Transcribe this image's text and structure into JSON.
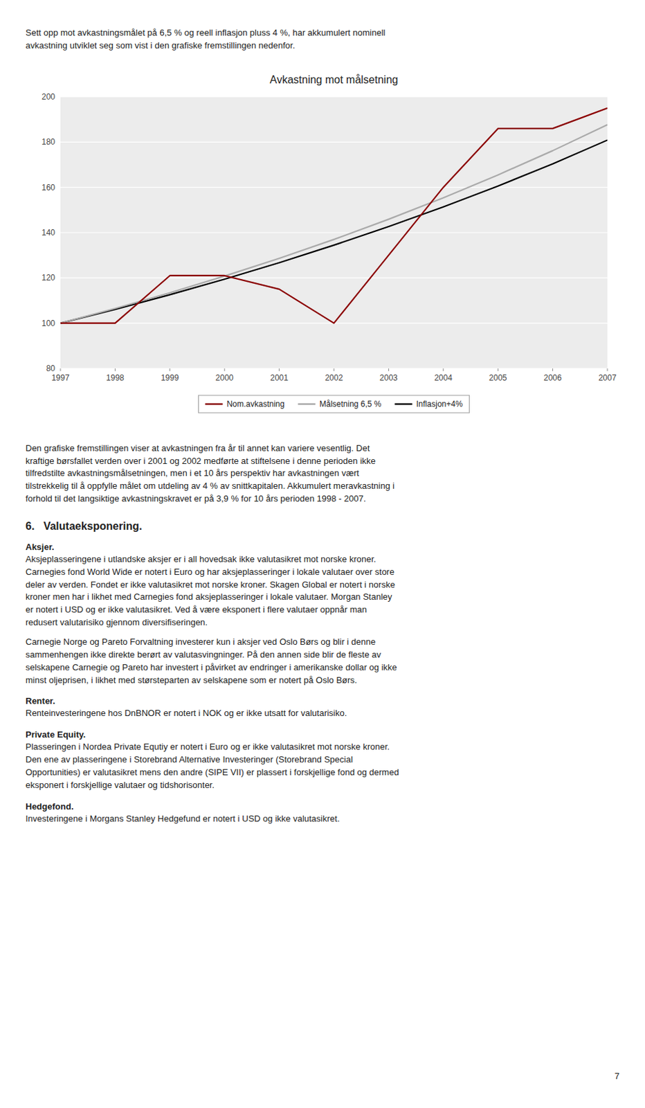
{
  "chart_data": {
    "type": "line",
    "title": "Avkastning mot målsetning",
    "x": [
      1997,
      1998,
      1999,
      2000,
      2001,
      2002,
      2003,
      2004,
      2005,
      2006,
      2007
    ],
    "series": [
      {
        "name": "Nom.avkastning",
        "color": "#8B0000",
        "values": [
          100,
          100,
          121,
          121,
          115,
          100,
          130,
          160,
          186,
          186,
          195
        ]
      },
      {
        "name": "Målsetning 6,5 %",
        "color": "#AAAAAA",
        "values": [
          100,
          106.5,
          113.42,
          120.79,
          128.64,
          137.0,
          145.9,
          155.4,
          165.5,
          176.2,
          187.7
        ]
      },
      {
        "name": "Inflasjon+4%",
        "color": "#000000",
        "values": [
          100,
          106.1,
          112.57,
          119.44,
          126.73,
          134.46,
          142.66,
          151.36,
          160.59,
          170.38,
          180.87
        ]
      }
    ],
    "xlim": [
      1997,
      2007
    ],
    "xticks": [
      1997,
      1998,
      1999,
      2000,
      2001,
      2002,
      2003,
      2004,
      2005,
      2006,
      2007
    ],
    "ylim": [
      80,
      200
    ],
    "yticks": [
      80,
      100,
      120,
      140,
      160,
      180,
      200
    ],
    "grid": true,
    "legend": "bottom"
  },
  "page_text_top": "Sett opp mot avkastningsmålet på 6,5 % og reell inflasjon pluss 4 %, har akkumulert nominell\navkastning utviklet seg som vist i den grafiske fremstillingen nedenfor.",
  "page_text_below_chart": "Den grafiske fremstillingen viser at avkastningen fra år til annet kan variere vesentlig. Det\nkraftige børsfallet verden over i 2001 og 2002 medførte at stiftelsene i denne perioden ikke\ntilfredstilte avkastningsmålsetningen, men i et 10 års perspektiv har avkastningen vært\ntilstrekkelig til å oppfylle målet om utdeling av 4 % av snittkapitalen. Akkumulert meravkastning i\nforhold til det langsiktige avkastningskravet er på 3,9 % for 10 års perioden 1998 - 2007.",
  "section_title": "6.   Valutaeksponering.",
  "aksjer_title": "Aksjer.",
  "aksjer_text": "Aksjeplasseringene i utlandske aksjer er i all hovedsak ikke valutasikret mot norske kroner.\nCarnegies fond World Wide er notert i Euro og har aksjeplasseringer i lokale valutaer over store\ndeler av verden. Fondet er ikke valutasikret mot norske kroner. Skagen Global er notert i norske\nkroner men har i likhet med Carnegies fond aksjeplasseringer i lokale valutaer. Morgan Stanley\ner notert i USD og er ikke valutasikret. Ved å være eksponert i flere valutaer oppnår man\nredusert valutarisiko gjennom diversifiseringen.",
  "aksjer_text2": "Carnegie Norge og Pareto Forvaltning investerer kun i aksjer ved Oslo Børs og blir i denne\nsammenhengen ikke direkte berørt av valutasvingninger. På den annen side blir de fleste av\nselskapene Carnegie og Pareto har investert i påvirket av endringer i amerikanske dollar og ikke\nminst oljeprisen, i likhet med størsteparten av selskapene som er notert på Oslo Børs.",
  "renter_title": "Renter.",
  "renter_text": "Renteinvesteringene hos DnBNOR er notert i NOK og er ikke utsatt for valutarisiko.",
  "pe_title": "Private Equity.",
  "pe_text": "Plasseringen i Nordea Private Equtiy er notert i Euro og er ikke valutasikret mot norske kroner.\nDen ene av plasseringene i Storebrand Alternative Investeringer (Storebrand Special\nOpportunities) er valutasikret mens den andre (SIPE VII) er plassert i forskjellige fond og dermed\neksponert i forskjellige valutaer og tidshorisonter.",
  "hedge_title": "Hedgefond.",
  "hedge_text": "Investeringene i Morgans Stanley Hedgefund er notert i USD og ikke valutasikret.",
  "page_number": "7"
}
